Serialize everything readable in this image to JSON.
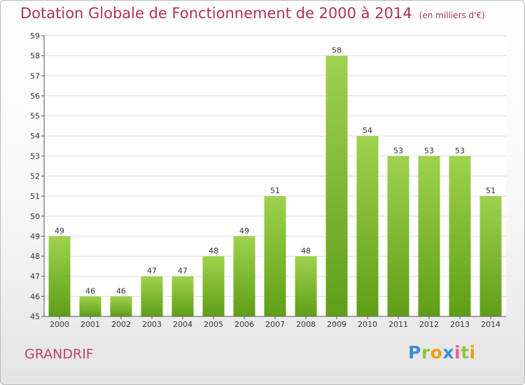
{
  "header": {
    "title": "Dotation Globale de Fonctionnement de 2000 à 2014",
    "subtitle": "(en milliers d'€)"
  },
  "commune": "GRANDRIF",
  "logo": {
    "text": "Proxiti",
    "colors": [
      "#3a8fd8",
      "#8cc63f",
      "#f39c12",
      "#3a8fd8",
      "#e85d9a",
      "#8cc63f",
      "#f39c12"
    ]
  },
  "colors": {
    "title": "#b0305a",
    "bar_light": "#9fd24e",
    "bar_dark": "#5f9e17",
    "grid": "#dddddd",
    "axis": "#555555"
  },
  "chart_data": {
    "type": "bar",
    "title": "Dotation Globale de Fonctionnement de 2000 à 2014",
    "subtitle": "(en milliers d'€)",
    "categories": [
      "2000",
      "2001",
      "2002",
      "2003",
      "2004",
      "2005",
      "2006",
      "2007",
      "2008",
      "2009",
      "2010",
      "2011",
      "2012",
      "2013",
      "2014"
    ],
    "values": [
      49,
      46,
      46,
      47,
      47,
      48,
      49,
      51,
      48,
      58,
      54,
      53,
      53,
      53,
      51
    ],
    "ylim": [
      45,
      59
    ],
    "yticks": [
      45,
      46,
      47,
      48,
      49,
      50,
      51,
      52,
      53,
      54,
      55,
      56,
      57,
      58,
      59
    ],
    "grid": true,
    "data_labels": true
  }
}
